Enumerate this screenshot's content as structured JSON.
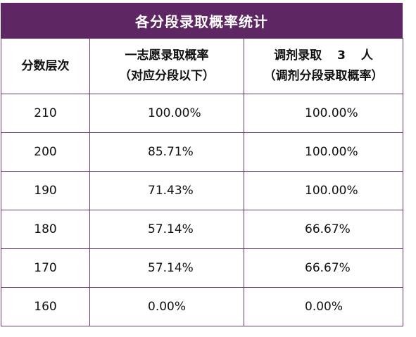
{
  "title": "各分段录取概率统计",
  "headers": {
    "level": "分数层次",
    "first_choice_line1": "一志愿录取概率",
    "first_choice_line2": "（对应分段以下）",
    "adjust_prefix": "调剂录取",
    "adjust_count": "3",
    "adjust_suffix": "人",
    "adjust_line2": "（调剂分段录取概率）"
  },
  "rows": [
    {
      "level": "210",
      "first": "100.00%",
      "adjust": "100.00%"
    },
    {
      "level": "200",
      "first": "85.71%",
      "adjust": "100.00%"
    },
    {
      "level": "190",
      "first": "71.43%",
      "adjust": "100.00%"
    },
    {
      "level": "180",
      "first": "57.14%",
      "adjust": "66.67%"
    },
    {
      "level": "170",
      "first": "57.14%",
      "adjust": "66.67%"
    },
    {
      "level": "160",
      "first": "0.00%",
      "adjust": "0.00%"
    }
  ]
}
